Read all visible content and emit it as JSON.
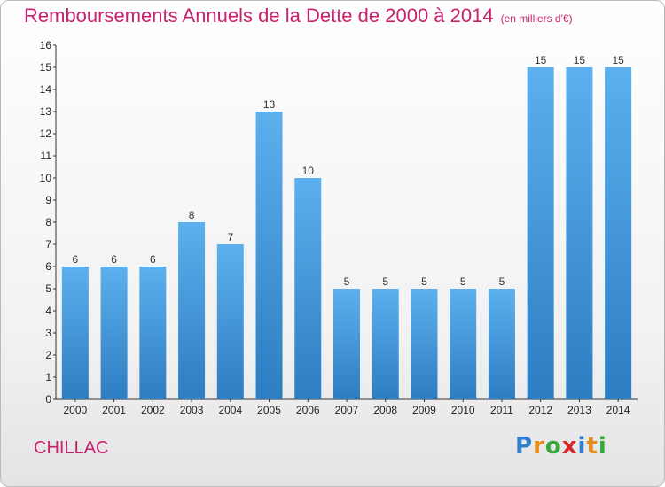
{
  "chart_data": {
    "type": "bar",
    "title": "Remboursements Annuels de la Dette de 2000 à 2014",
    "unit_label": "(en milliers d'€)",
    "categories": [
      "2000",
      "2001",
      "2002",
      "2003",
      "2004",
      "2005",
      "2006",
      "2007",
      "2008",
      "2009",
      "2010",
      "2011",
      "2012",
      "2013",
      "2014"
    ],
    "values": [
      6,
      6,
      6,
      8,
      7,
      13,
      10,
      5,
      5,
      5,
      5,
      5,
      15,
      15,
      15
    ],
    "xlabel": "",
    "ylabel": "",
    "ylim": [
      0,
      16
    ],
    "yticks": [
      0,
      1,
      2,
      3,
      4,
      5,
      6,
      7,
      8,
      9,
      10,
      11,
      12,
      13,
      14,
      15,
      16
    ],
    "grid": false,
    "bar_color": "#4a9fe0"
  },
  "commune": "CHILLAC",
  "logo": {
    "letters": [
      "P",
      "r",
      "o",
      "x",
      "i",
      "t",
      "i"
    ],
    "colors": [
      "#2f7fd0",
      "#e88a1a",
      "#36a83a",
      "#d9262a",
      "#2f7fd0",
      "#e88a1a",
      "#36a83a"
    ]
  }
}
